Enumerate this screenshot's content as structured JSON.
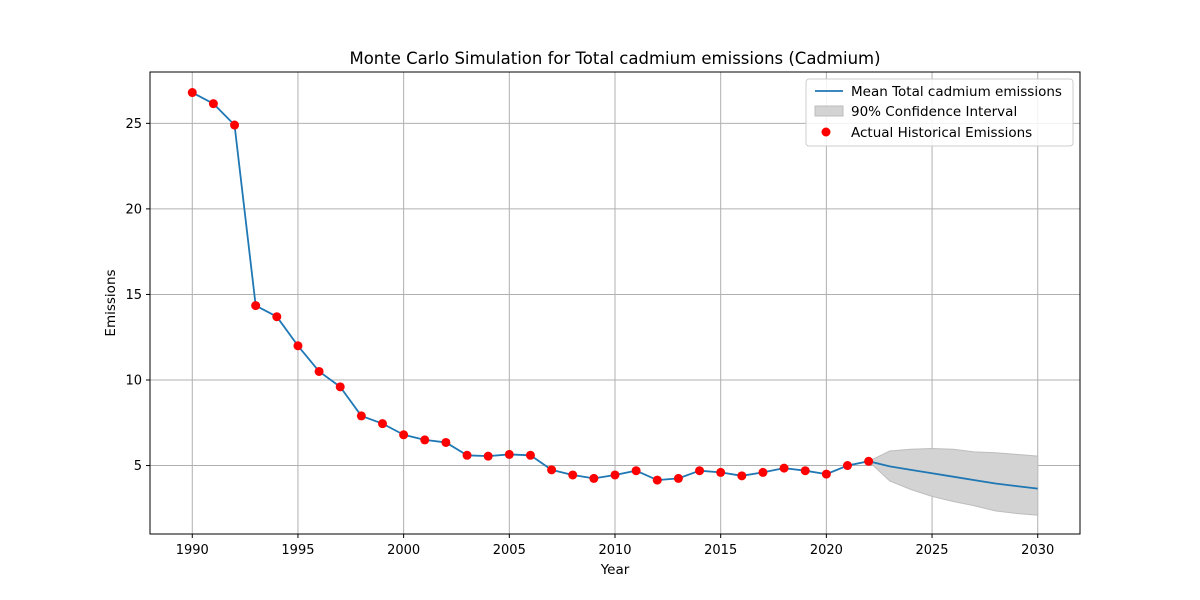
{
  "chart_data": {
    "type": "line",
    "title": "Monte Carlo Simulation for Total cadmium emissions (Cadmium)",
    "xlabel": "Year",
    "ylabel": "Emissions",
    "xlim": [
      1988,
      2032
    ],
    "ylim": [
      1.0,
      28.0
    ],
    "xticks": [
      1990,
      1995,
      2000,
      2005,
      2010,
      2015,
      2020,
      2025,
      2030
    ],
    "yticks": [
      5,
      10,
      15,
      20,
      25
    ],
    "grid": true,
    "legend_position": "top-right",
    "colors": {
      "mean_line": "#1f77b4",
      "interval_fill": "#d3d3d3",
      "interval_edge": "#bdbdbd",
      "actual_points": "#ff0000",
      "grid": "#b0b0b0"
    },
    "series": [
      {
        "name": "Mean Total cadmium emissions",
        "kind": "line",
        "x": [
          1990,
          1991,
          1992,
          1993,
          1994,
          1995,
          1996,
          1997,
          1998,
          1999,
          2000,
          2001,
          2002,
          2003,
          2004,
          2005,
          2006,
          2007,
          2008,
          2009,
          2010,
          2011,
          2012,
          2013,
          2014,
          2015,
          2016,
          2017,
          2018,
          2019,
          2020,
          2021,
          2022,
          2023,
          2024,
          2025,
          2026,
          2027,
          2028,
          2029,
          2030
        ],
        "y": [
          26.8,
          26.15,
          24.9,
          14.35,
          13.7,
          12.0,
          10.5,
          9.6,
          7.9,
          7.45,
          6.8,
          6.5,
          6.35,
          5.6,
          5.55,
          5.65,
          5.6,
          4.75,
          4.45,
          4.25,
          4.45,
          4.7,
          4.15,
          4.25,
          4.7,
          4.6,
          4.4,
          4.6,
          4.85,
          4.7,
          4.5,
          5.0,
          5.25,
          4.95,
          4.75,
          4.55,
          4.35,
          4.15,
          3.95,
          3.8,
          3.65
        ]
      },
      {
        "name": "90% Confidence Interval",
        "kind": "band",
        "x": [
          2022,
          2023,
          2024,
          2025,
          2026,
          2027,
          2028,
          2029,
          2030
        ],
        "lower": [
          5.25,
          4.1,
          3.6,
          3.2,
          2.9,
          2.65,
          2.35,
          2.2,
          2.1
        ],
        "upper": [
          5.25,
          5.85,
          5.95,
          6.0,
          5.95,
          5.8,
          5.75,
          5.65,
          5.55
        ]
      },
      {
        "name": "Actual Historical Emissions",
        "kind": "scatter",
        "x": [
          1990,
          1991,
          1992,
          1993,
          1994,
          1995,
          1996,
          1997,
          1998,
          1999,
          2000,
          2001,
          2002,
          2003,
          2004,
          2005,
          2006,
          2007,
          2008,
          2009,
          2010,
          2011,
          2012,
          2013,
          2014,
          2015,
          2016,
          2017,
          2018,
          2019,
          2020,
          2021,
          2022
        ],
        "y": [
          26.8,
          26.15,
          24.9,
          14.35,
          13.7,
          12.0,
          10.5,
          9.6,
          7.9,
          7.45,
          6.8,
          6.5,
          6.35,
          5.6,
          5.55,
          5.65,
          5.6,
          4.75,
          4.45,
          4.25,
          4.45,
          4.7,
          4.15,
          4.25,
          4.7,
          4.6,
          4.4,
          4.6,
          4.85,
          4.7,
          4.5,
          5.0,
          5.25
        ]
      }
    ]
  }
}
